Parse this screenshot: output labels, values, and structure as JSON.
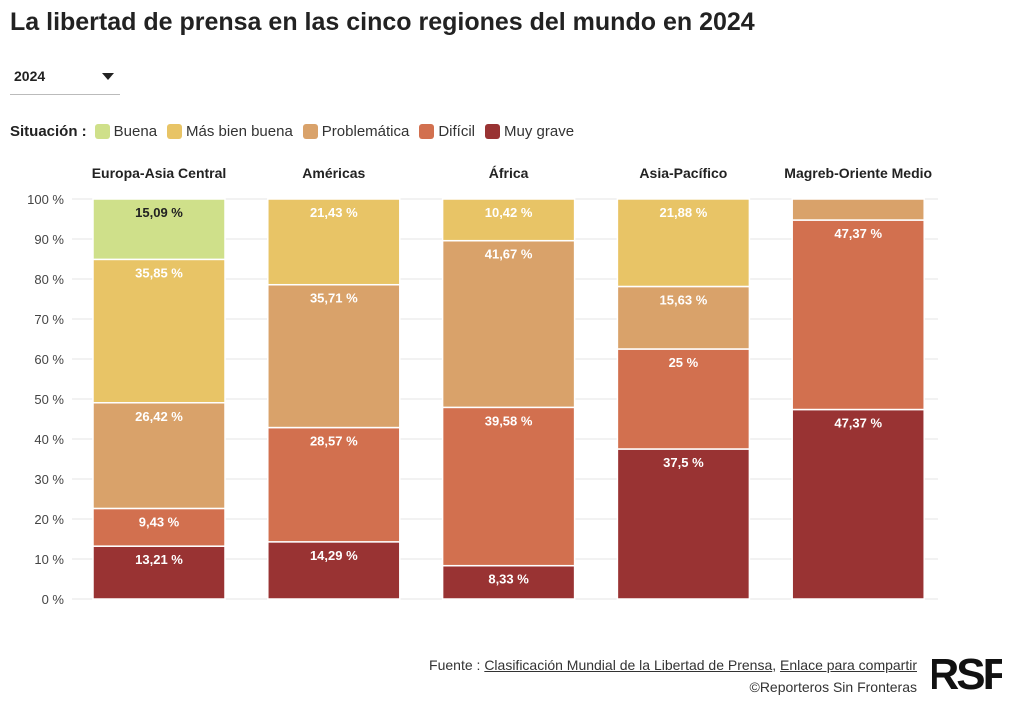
{
  "header": {
    "title": "La libertad de prensa en las cinco regiones del mundo en 2024"
  },
  "year_select": {
    "value": "2024"
  },
  "legend": {
    "title": "Situación :",
    "items": [
      {
        "label": "Buena",
        "color": "#cfe08a"
      },
      {
        "label": "Más bien buena",
        "color": "#e8c466"
      },
      {
        "label": "Problemática",
        "color": "#d9a26a"
      },
      {
        "label": "Difícil",
        "color": "#d2704f"
      },
      {
        "label": "Muy grave",
        "color": "#993333"
      }
    ]
  },
  "chart_data": {
    "type": "bar",
    "stacked": true,
    "categories": [
      "Europa-Asia Central",
      "Américas",
      "África",
      "Asia-Pacífico",
      "Magreb-Oriente Medio"
    ],
    "series": [
      {
        "name": "Muy grave",
        "color": "#993333",
        "values": [
          13.21,
          14.29,
          8.33,
          37.5,
          47.37
        ],
        "labels": [
          "13,21 %",
          "14,29 %",
          "8,33 %",
          "37,5 %",
          "47,37 %"
        ]
      },
      {
        "name": "Difícil",
        "color": "#d2704f",
        "values": [
          9.43,
          28.57,
          39.58,
          25,
          47.37
        ],
        "labels": [
          "9,43 %",
          "28,57 %",
          "39,58 %",
          "25 %",
          "47,37 %"
        ]
      },
      {
        "name": "Problemática",
        "color": "#d9a26a",
        "values": [
          26.42,
          35.71,
          41.67,
          15.63,
          5.26
        ],
        "labels": [
          "26,42 %",
          "35,71 %",
          "41,67 %",
          "15,63 %",
          ""
        ]
      },
      {
        "name": "Más bien buena",
        "color": "#e8c466",
        "values": [
          35.85,
          21.43,
          10.42,
          21.88,
          0
        ],
        "labels": [
          "35,85 %",
          "21,43 %",
          "10,42 %",
          "21,88 %",
          ""
        ]
      },
      {
        "name": "Buena",
        "color": "#cfe08a",
        "values": [
          15.09,
          0,
          0,
          0,
          0
        ],
        "labels": [
          "15,09 %",
          "",
          "",
          "",
          ""
        ]
      }
    ],
    "y_ticks": [
      "0 %",
      "10 %",
      "20 %",
      "30 %",
      "40 %",
      "50 %",
      "60 %",
      "70 %",
      "80 %",
      "90 %",
      "100 %"
    ],
    "ylim": [
      0,
      100
    ],
    "grid": true,
    "legend_position": "top-left"
  },
  "footer": {
    "source_prefix": "Fuente : ",
    "source_link": "Clasificación Mundial de la Libertad de Prensa",
    "separator": ", ",
    "share_link": "Enlace para compartir",
    "copyright": "©Reporteros Sin Fronteras",
    "logo_text": "RSF"
  }
}
